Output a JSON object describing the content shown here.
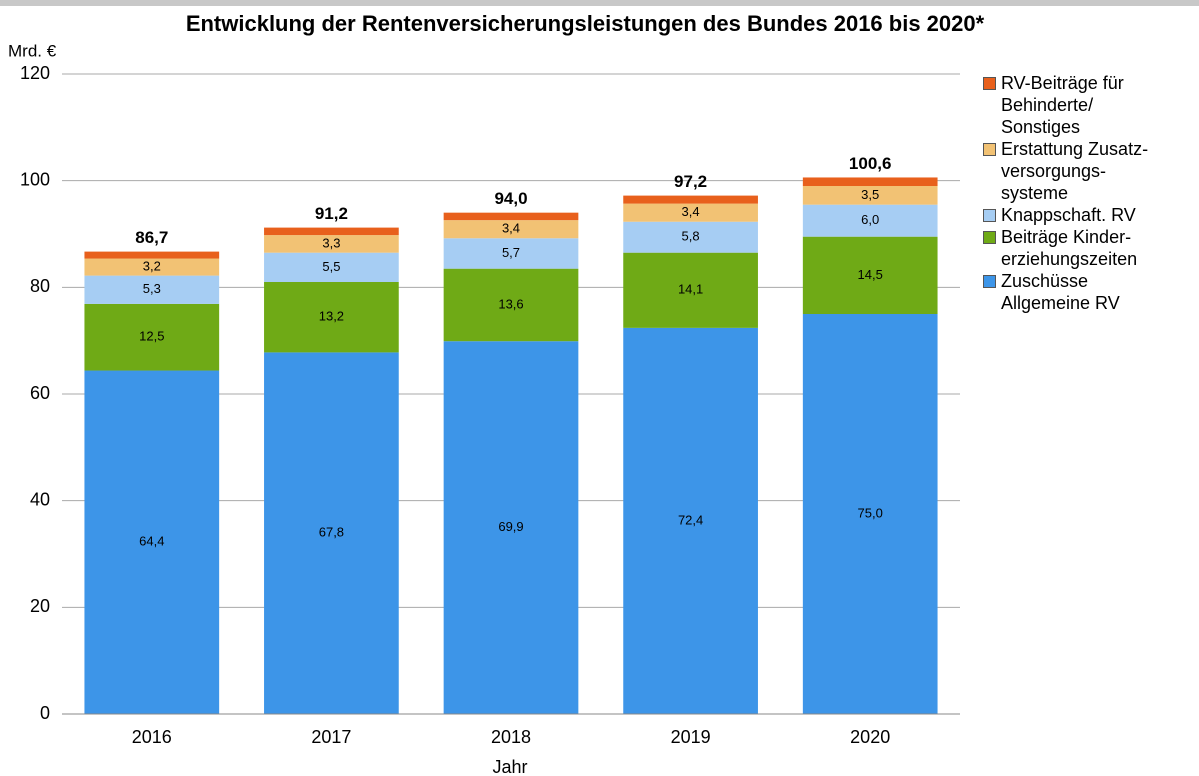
{
  "chart_data": {
    "type": "stacked_bar",
    "title": "Entwicklung der Rentenversicherungsleistungen des Bundes 2016 bis 2020*",
    "y_label": "Mrd. €",
    "x_label": "Jahr",
    "categories": [
      "2016",
      "2017",
      "2018",
      "2019",
      "2020"
    ],
    "series": [
      {
        "name": "Zuschüsse\nAllgemeine RV",
        "color": "#3d95e8",
        "values": [
          64.4,
          67.8,
          69.9,
          72.4,
          75.0
        ],
        "value_labels": [
          "64,4",
          "67,8",
          "69,9",
          "72,4",
          "75,0"
        ]
      },
      {
        "name": "Beiträge Kinder-\nerziehungszeiten",
        "color": "#6faa16",
        "values": [
          12.5,
          13.2,
          13.6,
          14.1,
          14.5
        ],
        "value_labels": [
          "12,5",
          "13,2",
          "13,6",
          "14,1",
          "14,5"
        ]
      },
      {
        "name": "Knappschaft. RV",
        "color": "#a6cdf3",
        "values": [
          5.3,
          5.5,
          5.7,
          5.8,
          6.0
        ],
        "value_labels": [
          "5,3",
          "5,5",
          "5,7",
          "5,8",
          "6,0"
        ]
      },
      {
        "name": "Erstattung Zusatz-\nversorgungs-\nsysteme",
        "color": "#f2c274",
        "values": [
          3.2,
          3.3,
          3.4,
          3.4,
          3.5
        ],
        "value_labels": [
          "3,2",
          "3,3",
          "3,4",
          "3,4",
          "3,5"
        ]
      },
      {
        "name": "RV-Beiträge für\nBehinderte/\nSonstiges",
        "color": "#e8601c",
        "values": [
          1.3,
          1.4,
          1.4,
          1.5,
          1.6
        ]
      }
    ],
    "totals": [
      86.7,
      91.2,
      94.0,
      97.2,
      100.6
    ],
    "total_labels": [
      "86,7",
      "91,2",
      "94,0",
      "97,2",
      "100,6"
    ],
    "ylim": [
      0,
      120
    ],
    "yticks": [
      0,
      20,
      40,
      60,
      80,
      100,
      120
    ],
    "grid": true
  }
}
